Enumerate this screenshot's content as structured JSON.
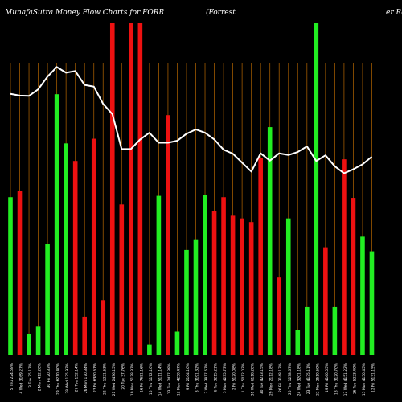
{
  "chart_data": {
    "type": "bar",
    "title_left": "MunafaSutra  Money Flow  Charts for FORR",
    "title_mid": "(Forrest",
    "title_right": "er Res",
    "colors": {
      "up": "#22ee22",
      "down": "#ee1111",
      "line": "#ffffff",
      "grid": "#a05a00",
      "background": "#000000"
    },
    "bars": [
      {
        "label": "5 Thu 224.58%",
        "value": 47.4,
        "dir": "up"
      },
      {
        "label": "4 Wed 3169.27%",
        "value": 49.3,
        "dir": "down"
      },
      {
        "label": "3 Tue 75.17%",
        "value": 6.3,
        "dir": "up"
      },
      {
        "label": "2 Mon 412.20%",
        "value": 8.4,
        "dir": "up"
      },
      {
        "label": "30 Fri 20.33%",
        "value": 33.3,
        "dir": "up"
      },
      {
        "label": "29 Thu 6210.40%",
        "value": 78.4,
        "dir": "up"
      },
      {
        "label": "28 Wed 135.93%",
        "value": 63.6,
        "dir": "up"
      },
      {
        "label": "27 Tue 152.14%",
        "value": 58.3,
        "dir": "down"
      },
      {
        "label": "26 Mon 170.34%",
        "value": 11.4,
        "dir": "down"
      },
      {
        "label": "23 Fri 6380.67%",
        "value": 65.0,
        "dir": "down"
      },
      {
        "label": "22 Thu 1221.63%",
        "value": 16.4,
        "dir": "down"
      },
      {
        "label": "21 Wed 2436.15%",
        "value": 100.0,
        "dir": "down"
      },
      {
        "label": "20 Tue 37.76%",
        "value": 45.2,
        "dir": "down"
      },
      {
        "label": "19 Mon 5178.37%",
        "value": 100.0,
        "dir": "down"
      },
      {
        "label": "16 Fri 7651.16%",
        "value": 100.0,
        "dir": "down"
      },
      {
        "label": "15 Thu 1172.10%",
        "value": 3.0,
        "dir": "up"
      },
      {
        "label": "14 Wed 5111.14%",
        "value": 47.8,
        "dir": "up"
      },
      {
        "label": "13 Tue 2417.39%",
        "value": 72.1,
        "dir": "down"
      },
      {
        "label": "12 Mon 4250.47%",
        "value": 6.9,
        "dir": "up"
      },
      {
        "label": "9 Fri 2104.10%",
        "value": 31.5,
        "dir": "up"
      },
      {
        "label": "8 Thu 3191.32%",
        "value": 34.7,
        "dir": "up"
      },
      {
        "label": "7 Wed 3817.67%",
        "value": 48.1,
        "dir": "up"
      },
      {
        "label": "6 Tue 3215.21%",
        "value": 43.2,
        "dir": "down"
      },
      {
        "label": "5 Mon 4235.73%",
        "value": 47.4,
        "dir": "down"
      },
      {
        "label": "2 Fri 5120.08%",
        "value": 41.8,
        "dir": "down"
      },
      {
        "label": "1 Thu 5012.03%",
        "value": 41.0,
        "dir": "down"
      },
      {
        "label": "31 Wed 6118.28%",
        "value": 39.9,
        "dir": "down"
      },
      {
        "label": "30 Tue 4213.15%",
        "value": 59.3,
        "dir": "down"
      },
      {
        "label": "29 Mon 2112.18%",
        "value": 68.5,
        "dir": "up"
      },
      {
        "label": "26 Fri 3148.13%",
        "value": 23.2,
        "dir": "down"
      },
      {
        "label": "25 Thu 1238.67%",
        "value": 41.0,
        "dir": "up"
      },
      {
        "label": "24 Wed 3201.18%",
        "value": 7.4,
        "dir": "up"
      },
      {
        "label": "23 Tue 4135.11%",
        "value": 14.3,
        "dir": "up"
      },
      {
        "label": "22 Mon 2510.60%",
        "value": 100.0,
        "dir": "up"
      },
      {
        "label": "19 Fri 4160.05%",
        "value": 32.3,
        "dir": "down"
      },
      {
        "label": "18 Thu 3120.70%",
        "value": 14.3,
        "dir": "up"
      },
      {
        "label": "17 Wed 4151.22%",
        "value": 58.8,
        "dir": "down"
      },
      {
        "label": "16 Tue 5223.40%",
        "value": 47.2,
        "dir": "down"
      },
      {
        "label": "15 Mon 4150.45%",
        "value": 35.5,
        "dir": "up"
      },
      {
        "label": "12 Fri 5131.15%",
        "value": 31.1,
        "dir": "up"
      }
    ],
    "line": [
      78.5,
      78.0,
      77.9,
      79.9,
      83.7,
      86.6,
      84.9,
      85.4,
      81.2,
      80.7,
      75.5,
      72.4,
      61.9,
      61.9,
      64.8,
      66.8,
      63.8,
      63.8,
      64.4,
      66.5,
      67.8,
      66.8,
      64.8,
      61.7,
      60.5,
      57.8,
      55.1,
      60.6,
      58.4,
      60.6,
      60.1,
      61.0,
      62.7,
      58.3,
      60.0,
      56.7,
      54.6,
      55.8,
      57.3,
      59.6
    ],
    "ylim": [
      0,
      100
    ]
  }
}
